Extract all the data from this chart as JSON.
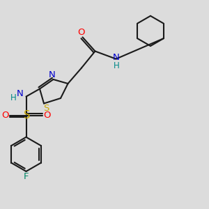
{
  "bg_color": "#dcdcdc",
  "bond_color": "#1a1a1a",
  "colors": {
    "O": "#ff0000",
    "N": "#0000cc",
    "S": "#ccaa00",
    "F": "#008866",
    "H": "#008888",
    "C": "#1a1a1a"
  },
  "figsize": [
    3.0,
    3.0
  ],
  "dpi": 100
}
